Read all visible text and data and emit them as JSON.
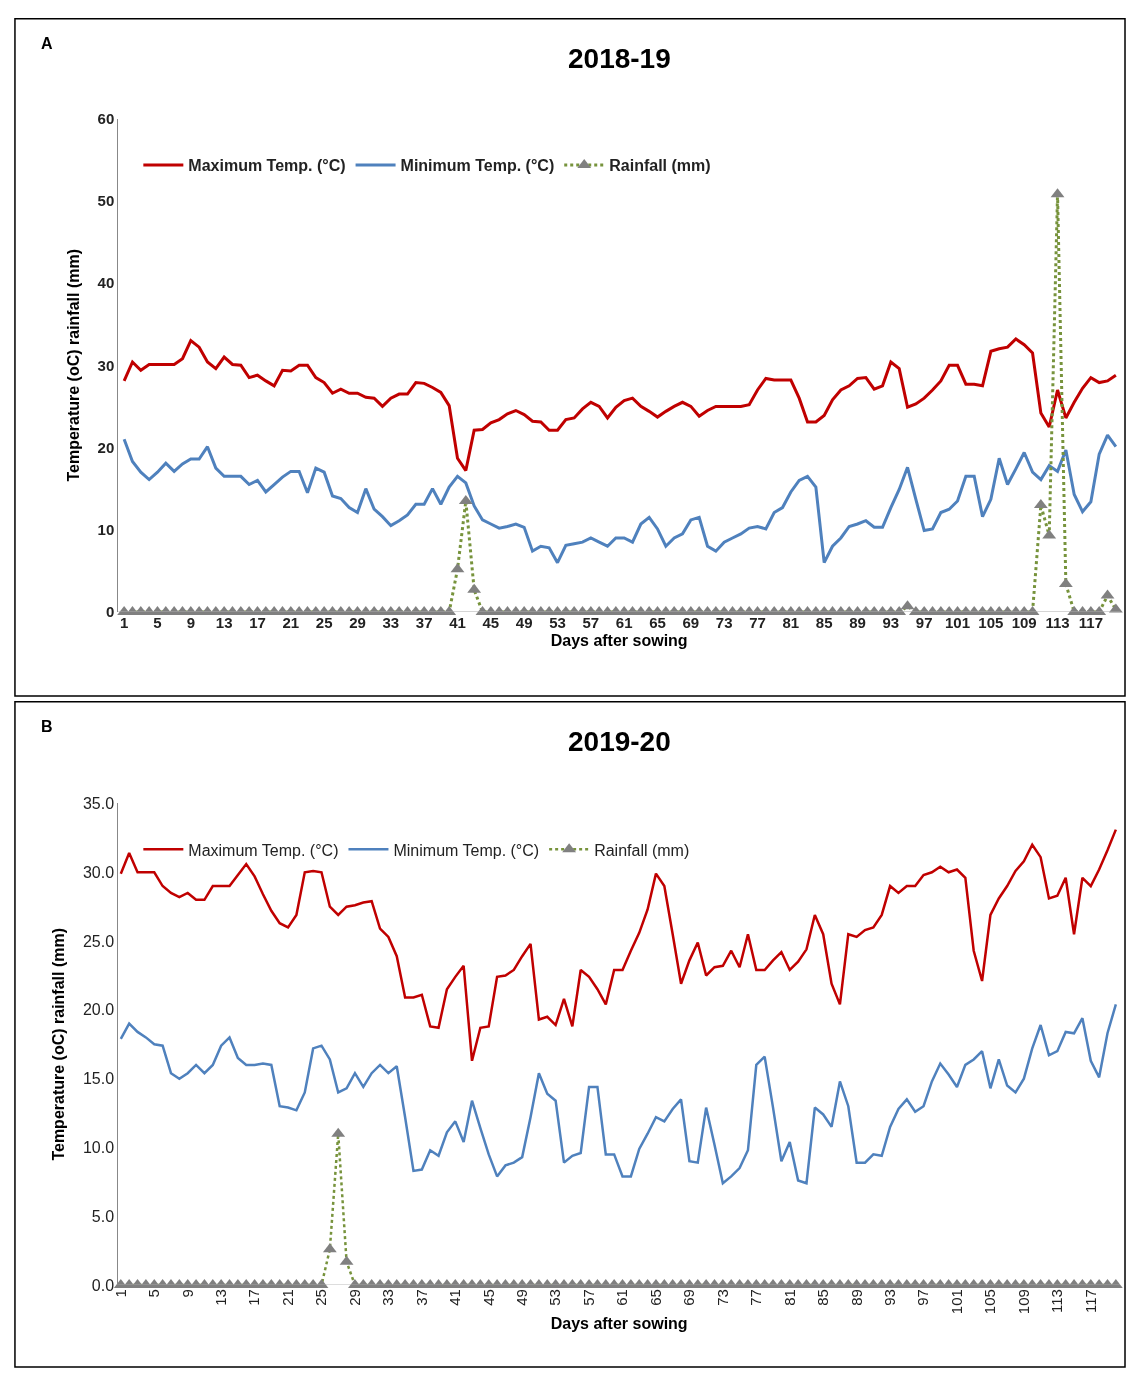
{
  "chart_data": [
    {
      "type": "line",
      "title": "2018-19",
      "xlabel": "Days after sowing",
      "ylabel": "Temperature (oC) rainfall (mm)",
      "annotations": [
        "A"
      ],
      "x": [
        1,
        2,
        3,
        4,
        5,
        6,
        7,
        8,
        9,
        10,
        11,
        12,
        13,
        14,
        15,
        16,
        17,
        18,
        19,
        20,
        21,
        22,
        23,
        24,
        25,
        26,
        27,
        28,
        29,
        30,
        31,
        32,
        33,
        34,
        35,
        36,
        37,
        38,
        39,
        40,
        41,
        42,
        43,
        44,
        45,
        46,
        47,
        48,
        49,
        50,
        51,
        52,
        53,
        54,
        55,
        56,
        57,
        58,
        59,
        60,
        61,
        62,
        63,
        64,
        65,
        66,
        67,
        68,
        69,
        70,
        71,
        72,
        73,
        74,
        75,
        76,
        77,
        78,
        79,
        80,
        81,
        82,
        83,
        84,
        85,
        86,
        87,
        88,
        89,
        90,
        91,
        92,
        93,
        94,
        95,
        96,
        97,
        98,
        99,
        100,
        101,
        102,
        103,
        104,
        105,
        106,
        107,
        108,
        109,
        110,
        111,
        112,
        113,
        114,
        115,
        116,
        117,
        118,
        119,
        120
      ],
      "xlim": [
        0.3,
        120.5
      ],
      "xticks": [
        1,
        5,
        9,
        13,
        17,
        21,
        25,
        29,
        33,
        37,
        41,
        45,
        49,
        53,
        57,
        61,
        65,
        69,
        73,
        77,
        81,
        85,
        89,
        93,
        97,
        101,
        105,
        109,
        113,
        117
      ],
      "ylim": [
        0,
        60
      ],
      "yticks": [
        0,
        10,
        20,
        30,
        40,
        50,
        60
      ],
      "legend": "top",
      "series": [
        {
          "name": "Maximum Temp. (°C)",
          "color": "#c00000",
          "marker": "none",
          "line_style": "solid",
          "values": [
            28.1,
            30.4,
            29.4,
            30.1,
            30.1,
            30.1,
            30.1,
            30.8,
            33.0,
            32.2,
            30.4,
            29.6,
            31.0,
            30.1,
            30.0,
            28.5,
            28.8,
            28.1,
            27.5,
            29.4,
            29.3,
            30.0,
            30.0,
            28.5,
            27.9,
            26.6,
            27.1,
            26.6,
            26.6,
            26.1,
            26.0,
            25.0,
            26.0,
            26.5,
            26.5,
            27.9,
            27.8,
            27.3,
            26.7,
            25.1,
            18.7,
            17.2,
            22.1,
            22.2,
            23.0,
            23.4,
            24.1,
            24.5,
            24.0,
            23.2,
            23.1,
            22.1,
            22.1,
            23.4,
            23.6,
            24.7,
            25.5,
            25.0,
            23.6,
            24.9,
            25.7,
            26.0,
            25.0,
            24.4,
            23.7,
            24.4,
            25.0,
            25.5,
            25.0,
            23.8,
            24.5,
            25.0,
            25.0,
            25.0,
            25.0,
            25.2,
            27.0,
            28.4,
            28.2,
            28.2,
            28.2,
            26.0,
            23.1,
            23.1,
            23.9,
            25.8,
            27.0,
            27.5,
            28.4,
            28.5,
            27.1,
            27.5,
            30.4,
            29.6,
            24.9,
            25.3,
            26.0,
            27.0,
            28.1,
            30.0,
            30.0,
            27.7,
            27.7,
            27.5,
            31.7,
            32.0,
            32.2,
            33.2,
            32.5,
            31.5,
            24.2,
            22.5,
            27.0,
            23.6,
            25.5,
            27.2,
            28.5,
            27.9,
            28.1,
            28.8
          ]
        },
        {
          "name": "Minimum Temp. (°C)",
          "color": "#4f81bd",
          "marker": "none",
          "line_style": "solid",
          "values": [
            21.0,
            18.3,
            17.0,
            16.1,
            17.0,
            18.1,
            17.1,
            18.0,
            18.6,
            18.6,
            20.1,
            17.5,
            16.5,
            16.5,
            16.5,
            15.5,
            16.0,
            14.6,
            15.5,
            16.4,
            17.1,
            17.1,
            14.5,
            17.5,
            17.0,
            14.1,
            13.8,
            12.7,
            12.1,
            15.0,
            12.5,
            11.6,
            10.5,
            11.1,
            11.8,
            13.1,
            13.1,
            15.0,
            13.1,
            15.2,
            16.5,
            15.7,
            12.9,
            11.2,
            10.7,
            10.2,
            10.4,
            10.7,
            10.3,
            7.4,
            8.0,
            7.8,
            6.0,
            8.1,
            8.3,
            8.5,
            9.0,
            8.5,
            8.0,
            9.0,
            9.0,
            8.5,
            10.7,
            11.5,
            10.1,
            8.0,
            9.0,
            9.5,
            11.2,
            11.5,
            8.0,
            7.4,
            8.5,
            9.0,
            9.5,
            10.2,
            10.4,
            10.1,
            12.1,
            12.7,
            14.6,
            16.0,
            16.5,
            15.2,
            6.0,
            8.0,
            9.0,
            10.4,
            10.7,
            11.1,
            10.3,
            10.3,
            12.7,
            14.9,
            17.6,
            13.7,
            9.9,
            10.1,
            12.1,
            12.5,
            13.5,
            16.5,
            16.5,
            11.6,
            13.7,
            18.7,
            15.5,
            17.4,
            19.4,
            17.0,
            16.1,
            17.8,
            17.1,
            19.7,
            14.3,
            12.2,
            13.4,
            19.2,
            21.5,
            20.1
          ]
        },
        {
          "name": "Rainfall (mm)",
          "color": "#77933c",
          "marker": "triangle",
          "line_style": "dotted",
          "values": [
            0,
            0,
            0,
            0,
            0,
            0,
            0,
            0,
            0,
            0,
            0,
            0,
            0,
            0,
            0,
            0,
            0,
            0,
            0,
            0,
            0,
            0,
            0,
            0,
            0,
            0,
            0,
            0,
            0,
            0,
            0,
            0,
            0,
            0,
            0,
            0,
            0,
            0,
            0,
            0,
            5.2,
            13.5,
            2.7,
            0,
            0,
            0,
            0,
            0,
            0,
            0,
            0,
            0,
            0,
            0,
            0,
            0,
            0,
            0,
            0,
            0,
            0,
            0,
            0,
            0,
            0,
            0,
            0,
            0,
            0,
            0,
            0,
            0,
            0,
            0,
            0,
            0,
            0,
            0,
            0,
            0,
            0,
            0,
            0,
            0,
            0,
            0,
            0,
            0,
            0,
            0,
            0,
            0,
            0,
            0,
            0.7,
            0,
            0,
            0,
            0,
            0,
            0,
            0,
            0,
            0,
            0,
            0,
            0,
            0,
            0,
            0,
            13.0,
            9.3,
            50.8,
            3.4,
            0,
            0,
            0,
            0,
            2.0,
            0.3
          ]
        }
      ]
    },
    {
      "type": "line",
      "title": "2019-20",
      "xlabel": "Days after sowing",
      "ylabel": "Temperature (oC) rainfall (mm)",
      "annotations": [
        "B"
      ],
      "x": [
        1,
        2,
        3,
        4,
        5,
        6,
        7,
        8,
        9,
        10,
        11,
        12,
        13,
        14,
        15,
        16,
        17,
        18,
        19,
        20,
        21,
        22,
        23,
        24,
        25,
        26,
        27,
        28,
        29,
        30,
        31,
        32,
        33,
        34,
        35,
        36,
        37,
        38,
        39,
        40,
        41,
        42,
        43,
        44,
        45,
        46,
        47,
        48,
        49,
        50,
        51,
        52,
        53,
        54,
        55,
        56,
        57,
        58,
        59,
        60,
        61,
        62,
        63,
        64,
        65,
        66,
        67,
        68,
        69,
        70,
        71,
        72,
        73,
        74,
        75,
        76,
        77,
        78,
        79,
        80,
        81,
        82,
        83,
        84,
        85,
        86,
        87,
        88,
        89,
        90,
        91,
        92,
        93,
        94,
        95,
        96,
        97,
        98,
        99,
        100,
        101,
        102,
        103,
        104,
        105,
        106,
        107,
        108,
        109,
        110,
        111,
        112,
        113,
        114,
        115,
        116,
        117,
        118,
        119,
        120
      ],
      "xlim": [
        0.7,
        120.5
      ],
      "xticks": [
        1,
        5,
        9,
        13,
        17,
        21,
        25,
        29,
        33,
        37,
        41,
        45,
        49,
        53,
        57,
        61,
        65,
        69,
        73,
        77,
        81,
        85,
        89,
        93,
        97,
        101,
        105,
        109,
        113,
        117
      ],
      "ylim": [
        0,
        35
      ],
      "yticks": [
        {
          "value": 0,
          "label": "0.0"
        },
        {
          "value": 5,
          "label": "5.0"
        },
        {
          "value": 10,
          "label": "10.0"
        },
        {
          "value": 15,
          "label": "15.0"
        },
        {
          "value": 20,
          "label": "20.0"
        },
        {
          "value": 25,
          "label": "25.0"
        },
        {
          "value": 30,
          "label": "30.0"
        },
        {
          "value": 35,
          "label": "35.0"
        }
      ],
      "legend": "top",
      "series": [
        {
          "name": "Maximum Temp. (°C)",
          "color": "#c00000",
          "marker": "none",
          "line_style": "solid",
          "values": [
            29.9,
            31.4,
            30.0,
            30.0,
            30.0,
            29.0,
            28.5,
            28.2,
            28.5,
            28.0,
            28.0,
            29.0,
            29.0,
            29.0,
            29.8,
            30.6,
            29.7,
            28.4,
            27.2,
            26.3,
            26.0,
            26.9,
            30.0,
            30.1,
            30.0,
            27.5,
            26.9,
            27.5,
            27.6,
            27.8,
            27.9,
            25.9,
            25.3,
            23.9,
            20.9,
            20.9,
            21.1,
            18.8,
            18.7,
            21.5,
            22.4,
            23.2,
            16.3,
            18.7,
            18.8,
            22.4,
            22.5,
            22.9,
            23.9,
            24.8,
            19.3,
            19.5,
            18.9,
            20.8,
            18.8,
            22.9,
            22.4,
            21.5,
            20.4,
            22.9,
            22.9,
            24.3,
            25.6,
            27.3,
            29.9,
            29.0,
            25.5,
            21.9,
            23.6,
            24.9,
            22.5,
            23.1,
            23.2,
            24.3,
            23.1,
            25.5,
            22.9,
            22.9,
            23.6,
            24.2,
            22.9,
            23.5,
            24.4,
            26.9,
            25.5,
            21.9,
            20.4,
            25.5,
            25.3,
            25.8,
            26.0,
            26.9,
            29.0,
            28.5,
            29.0,
            29.0,
            29.8,
            30.0,
            30.4,
            30.0,
            30.2,
            29.6,
            24.3,
            22.1,
            26.9,
            28.1,
            29.0,
            30.1,
            30.8,
            32.0,
            31.1,
            28.1,
            28.3,
            29.6,
            25.5,
            29.6,
            29.0,
            30.2,
            31.6,
            33.1
          ]
        },
        {
          "name": "Minimum Temp. (°C)",
          "color": "#4f81bd",
          "marker": "none",
          "line_style": "solid",
          "values": [
            17.9,
            19.0,
            18.4,
            18.0,
            17.5,
            17.4,
            15.4,
            15.0,
            15.4,
            16.0,
            15.4,
            16.0,
            17.4,
            18.0,
            16.5,
            16.0,
            16.0,
            16.1,
            16.0,
            13.0,
            12.9,
            12.7,
            14.0,
            17.2,
            17.4,
            16.4,
            14.0,
            14.3,
            15.4,
            14.4,
            15.4,
            16.0,
            15.4,
            15.9,
            12.2,
            8.3,
            8.4,
            9.8,
            9.4,
            11.1,
            11.9,
            10.4,
            13.4,
            11.4,
            9.5,
            7.9,
            8.7,
            8.9,
            9.3,
            12.2,
            15.4,
            13.9,
            13.4,
            8.9,
            9.4,
            9.6,
            14.4,
            14.4,
            9.5,
            9.5,
            7.9,
            7.9,
            9.9,
            11.0,
            12.2,
            11.9,
            12.8,
            13.5,
            9.0,
            8.9,
            12.9,
            10.2,
            7.4,
            7.9,
            8.5,
            9.8,
            16.0,
            16.6,
            12.9,
            9.0,
            10.4,
            7.6,
            7.4,
            12.9,
            12.4,
            11.5,
            14.8,
            13.0,
            8.9,
            8.9,
            9.5,
            9.4,
            11.5,
            12.8,
            13.5,
            12.6,
            13.0,
            14.8,
            16.1,
            15.3,
            14.4,
            16.0,
            16.4,
            17.0,
            14.3,
            16.4,
            14.5,
            14.0,
            15.0,
            17.2,
            18.9,
            16.7,
            17.0,
            18.4,
            18.3,
            19.4,
            16.3,
            15.1,
            18.3,
            20.4
          ]
        },
        {
          "name": "Rainfall (mm)",
          "color": "#77933c",
          "marker": "triangle",
          "line_style": "dotted",
          "values": [
            0,
            0,
            0,
            0,
            0,
            0,
            0,
            0,
            0,
            0,
            0,
            0,
            0,
            0,
            0,
            0,
            0,
            0,
            0,
            0,
            0,
            0,
            0,
            0,
            0,
            2.6,
            11.0,
            1.7,
            0,
            0,
            0,
            0,
            0,
            0,
            0,
            0,
            0,
            0,
            0,
            0,
            0,
            0,
            0,
            0,
            0,
            0,
            0,
            0,
            0,
            0,
            0,
            0,
            0,
            0,
            0,
            0,
            0,
            0,
            0,
            0,
            0,
            0,
            0,
            0,
            0,
            0,
            0,
            0,
            0,
            0,
            0,
            0,
            0,
            0,
            0,
            0,
            0,
            0,
            0,
            0,
            0,
            0,
            0,
            0,
            0,
            0,
            0,
            0,
            0,
            0,
            0,
            0,
            0,
            0,
            0,
            0,
            0,
            0,
            0,
            0,
            0,
            0,
            0,
            0,
            0,
            0,
            0,
            0,
            0,
            0,
            0,
            0,
            0,
            0,
            0,
            0,
            0,
            0,
            0,
            0
          ]
        }
      ]
    }
  ]
}
